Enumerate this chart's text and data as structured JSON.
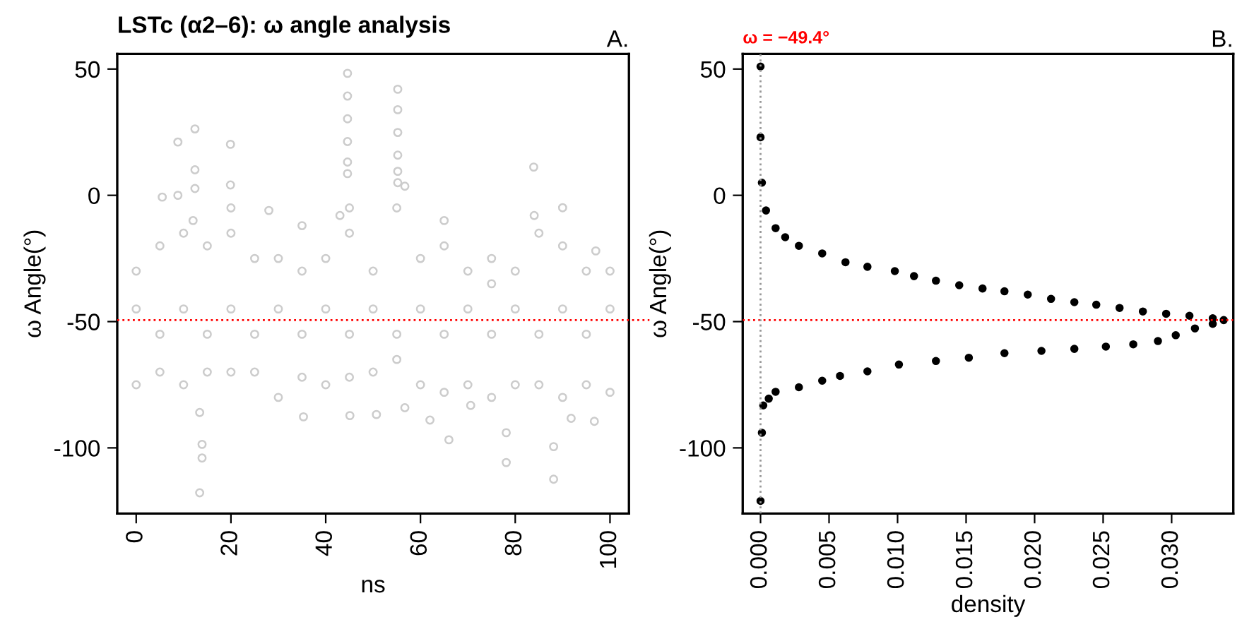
{
  "chart_data": [
    {
      "type": "scatter",
      "title": "LSTc (α2–6): ω angle analysis",
      "annotations": [
        "A."
      ],
      "xlabel": "ns",
      "ylabel": "ω Angle(°)",
      "xlim": [
        -4,
        104
      ],
      "xticks": [
        0,
        20,
        40,
        60,
        80,
        100
      ],
      "ylim": [
        -126,
        56
      ],
      "yticks": [
        -100,
        -50,
        0,
        50
      ],
      "marker": "circle",
      "grid": false,
      "legend": false,
      "ref_lines": [
        {
          "axis": "y",
          "value": -49.4,
          "color": "#ff0000",
          "line_style": "dotted"
        }
      ],
      "series": [
        {
          "color": "#cccccc",
          "x": [
            12.4,
            8.8,
            19.9,
            12.4,
            12.4,
            19.9,
            5.5,
            8.8,
            44.6,
            44.6,
            44.6,
            44.6,
            44.6,
            44.6,
            55.2,
            55.2,
            55.2,
            55.2,
            55.2,
            55.2,
            56.7,
            83.9,
            90,
            13.4,
            13.9,
            13.9,
            13.4,
            35.3,
            45.1,
            62,
            66,
            78.1,
            78.1,
            88.1,
            88.1,
            96.7,
            91.8,
            50.7,
            56.7,
            70.6,
            0,
            5,
            10,
            15,
            20,
            25,
            30,
            35,
            40,
            45,
            50,
            55,
            60,
            65,
            70,
            75,
            80,
            85,
            90,
            95,
            100,
            0,
            5,
            10,
            15,
            20,
            25,
            30,
            35,
            40,
            45,
            50,
            55,
            60,
            65,
            70,
            75,
            80,
            85,
            90,
            95,
            100,
            0,
            5,
            10,
            15,
            20,
            25,
            30,
            35,
            40,
            45,
            50,
            55,
            60,
            65,
            70,
            75,
            80,
            85,
            90,
            95,
            100,
            12,
            20,
            28,
            35,
            43,
            45,
            65,
            75,
            84,
            97
          ],
          "values": [
            26.3,
            21.1,
            20.2,
            10.1,
            2.7,
            4.1,
            -0.7,
            0,
            48.3,
            39.3,
            30.3,
            21.3,
            13.2,
            8.6,
            42,
            33.9,
            24.9,
            15.9,
            9.5,
            5,
            3.6,
            11.2,
            -4.9,
            -117.8,
            -104,
            -98.6,
            -86,
            -87.7,
            -87.2,
            -89,
            -96.8,
            -105.8,
            -94,
            -112.4,
            -99.5,
            -89.5,
            -88.3,
            -86.8,
            -84.1,
            -83.2,
            -30,
            -20,
            -15,
            -20,
            -15,
            -25,
            -25,
            -30,
            -25,
            -15,
            -30,
            -5,
            -25,
            -20,
            -30,
            -35,
            -30,
            -15,
            -20,
            -30,
            -30,
            -75,
            -70,
            -75,
            -70,
            -70,
            -70,
            -80,
            -72,
            -75,
            -72,
            -70,
            -65,
            -75,
            -78,
            -75,
            -80,
            -75,
            -75,
            -80,
            -75,
            -78,
            -45,
            -55,
            -45,
            -55,
            -45,
            -55,
            -45,
            -55,
            -45,
            -55,
            -45,
            -55,
            -45,
            -55,
            -45,
            -55,
            -45,
            -55,
            -45,
            -55,
            -45,
            -10,
            -5,
            -6,
            -12,
            -8,
            -5,
            -10,
            -25,
            -8,
            -22
          ]
        }
      ]
    },
    {
      "type": "scatter",
      "annotations": [
        "B."
      ],
      "xlabel": "density",
      "ylabel": "ω Angle(°)",
      "xlim": [
        -0.0013,
        0.0345
      ],
      "xticks": [
        {
          "value": 0,
          "label": "0.000"
        },
        {
          "value": 0.005,
          "label": "0.005"
        },
        {
          "value": 0.01,
          "label": "0.010"
        },
        {
          "value": 0.015,
          "label": "0.015"
        },
        {
          "value": 0.02,
          "label": "0.020"
        },
        {
          "value": 0.025,
          "label": "0.025"
        },
        {
          "value": 0.03,
          "label": "0.030"
        }
      ],
      "ylim": [
        -126,
        56
      ],
      "yticks": [
        -100,
        -50,
        0,
        50
      ],
      "marker": "circle",
      "grid": false,
      "legend": false,
      "ref_lines": [
        {
          "axis": "y",
          "value": -49.4,
          "label": "ω = −49.4°",
          "color": "#ff0000",
          "line_style": "dotted"
        },
        {
          "axis": "x",
          "value": 0,
          "color": "#999999",
          "line_style": "dotted"
        }
      ],
      "series": [
        {
          "color": "#000000",
          "x": [
            0.0,
            0.0,
            0.0001,
            0.0004,
            0.0011,
            0.0018,
            0.0028,
            0.0045,
            0.0062,
            0.0078,
            0.0098,
            0.0112,
            0.0128,
            0.0145,
            0.0162,
            0.0178,
            0.0195,
            0.0212,
            0.0229,
            0.0245,
            0.0262,
            0.0279,
            0.0296,
            0.0313,
            0.033,
            0.0338,
            0.033,
            0.0317,
            0.0303,
            0.029,
            0.0272,
            0.0252,
            0.0229,
            0.0205,
            0.0178,
            0.0152,
            0.0128,
            0.0101,
            0.0078,
            0.0058,
            0.0045,
            0.0028,
            0.0011,
            0.0006,
            0.0002,
            0.0001,
            0.0
          ],
          "values": [
            51,
            23,
            5,
            -6,
            -13,
            -16.6,
            -20,
            -23,
            -26.5,
            -28.3,
            -30,
            -32,
            -33.8,
            -35.6,
            -36.9,
            -38,
            -39.3,
            -41,
            -42.3,
            -43.3,
            -44.6,
            -46,
            -46.9,
            -47.7,
            -48.7,
            -49.4,
            -50.9,
            -52.7,
            -55.4,
            -57.7,
            -59,
            -59.9,
            -60.8,
            -61.6,
            -62.5,
            -64.3,
            -65.6,
            -67,
            -69.7,
            -71.5,
            -73.4,
            -76,
            -77.8,
            -80.5,
            -83.2,
            -94,
            -121
          ]
        }
      ]
    }
  ]
}
